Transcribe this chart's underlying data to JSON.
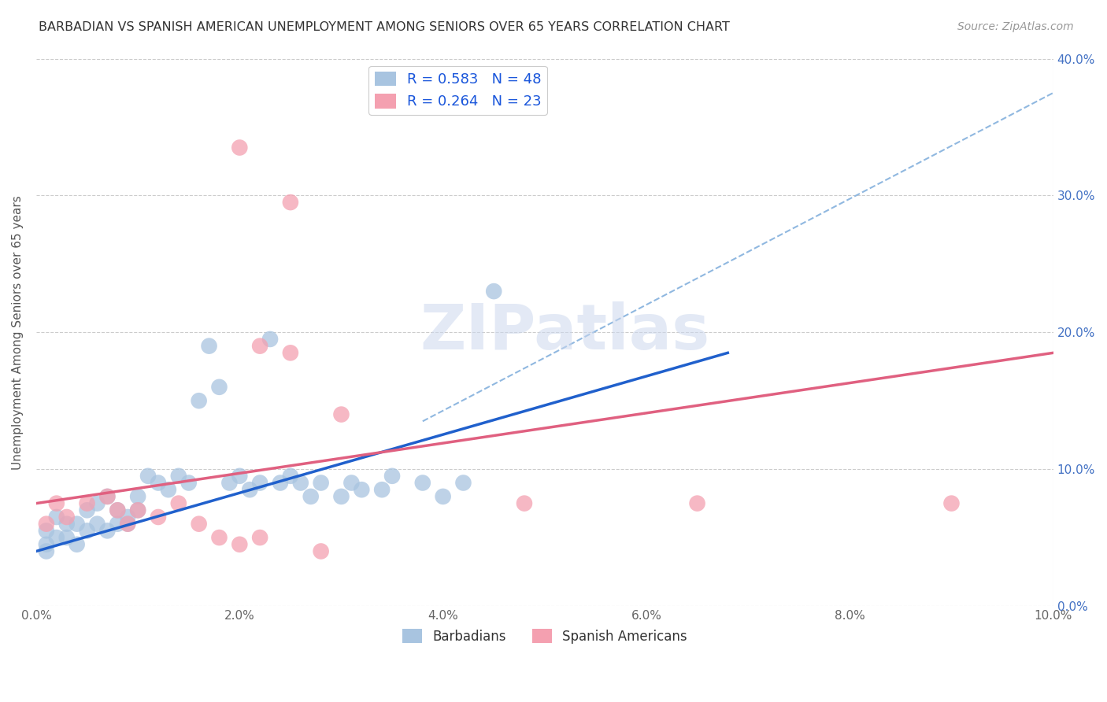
{
  "title": "BARBADIAN VS SPANISH AMERICAN UNEMPLOYMENT AMONG SENIORS OVER 65 YEARS CORRELATION CHART",
  "source": "Source: ZipAtlas.com",
  "ylabel": "Unemployment Among Seniors over 65 years",
  "xlabel": "",
  "xlim": [
    0.0,
    0.1
  ],
  "ylim": [
    0.0,
    0.4
  ],
  "xticks": [
    0.0,
    0.02,
    0.04,
    0.06,
    0.08,
    0.1
  ],
  "yticks": [
    0.0,
    0.1,
    0.2,
    0.3,
    0.4
  ],
  "xticklabels": [
    "0.0%",
    "2.0%",
    "4.0%",
    "6.0%",
    "8.0%",
    "10.0%"
  ],
  "yticklabels_right": [
    "0.0%",
    "10.0%",
    "20.0%",
    "30.0%",
    "40.0%"
  ],
  "legend1_label": "R = 0.583   N = 48",
  "legend2_label": "R = 0.264   N = 23",
  "barbadians_color": "#a8c4e0",
  "spanish_color": "#f4a0b0",
  "blue_line_color": "#2060cc",
  "pink_line_color": "#e06080",
  "dash_line_color": "#90b8e0",
  "watermark": "ZIPatlas",
  "barbadians_x": [
    0.001,
    0.001,
    0.001,
    0.002,
    0.002,
    0.003,
    0.003,
    0.004,
    0.004,
    0.005,
    0.005,
    0.006,
    0.006,
    0.007,
    0.007,
    0.008,
    0.008,
    0.009,
    0.009,
    0.01,
    0.01,
    0.011,
    0.012,
    0.013,
    0.014,
    0.015,
    0.016,
    0.017,
    0.018,
    0.019,
    0.02,
    0.021,
    0.022,
    0.023,
    0.024,
    0.025,
    0.026,
    0.027,
    0.028,
    0.03,
    0.031,
    0.032,
    0.034,
    0.035,
    0.038,
    0.04,
    0.042,
    0.045
  ],
  "barbadians_y": [
    0.04,
    0.045,
    0.055,
    0.05,
    0.065,
    0.05,
    0.06,
    0.045,
    0.06,
    0.055,
    0.07,
    0.06,
    0.075,
    0.055,
    0.08,
    0.06,
    0.07,
    0.06,
    0.065,
    0.07,
    0.08,
    0.095,
    0.09,
    0.085,
    0.095,
    0.09,
    0.15,
    0.19,
    0.16,
    0.09,
    0.095,
    0.085,
    0.09,
    0.195,
    0.09,
    0.095,
    0.09,
    0.08,
    0.09,
    0.08,
    0.09,
    0.085,
    0.085,
    0.095,
    0.09,
    0.08,
    0.09,
    0.23
  ],
  "spanish_x": [
    0.001,
    0.002,
    0.003,
    0.005,
    0.007,
    0.008,
    0.009,
    0.01,
    0.012,
    0.014,
    0.016,
    0.018,
    0.02,
    0.022,
    0.025,
    0.028,
    0.03,
    0.048,
    0.065,
    0.09,
    0.02,
    0.022,
    0.025
  ],
  "spanish_y": [
    0.06,
    0.075,
    0.065,
    0.075,
    0.08,
    0.07,
    0.06,
    0.07,
    0.065,
    0.075,
    0.06,
    0.05,
    0.045,
    0.05,
    0.185,
    0.04,
    0.14,
    0.075,
    0.075,
    0.075,
    0.335,
    0.19,
    0.295
  ],
  "blue_line_x0": 0.0,
  "blue_line_y0": 0.04,
  "blue_line_x1": 0.068,
  "blue_line_y1": 0.185,
  "dash_line_x0": 0.038,
  "dash_line_y0": 0.135,
  "dash_line_x1": 0.1,
  "dash_line_y1": 0.375,
  "pink_line_x0": 0.0,
  "pink_line_y0": 0.075,
  "pink_line_x1": 0.1,
  "pink_line_y1": 0.185
}
